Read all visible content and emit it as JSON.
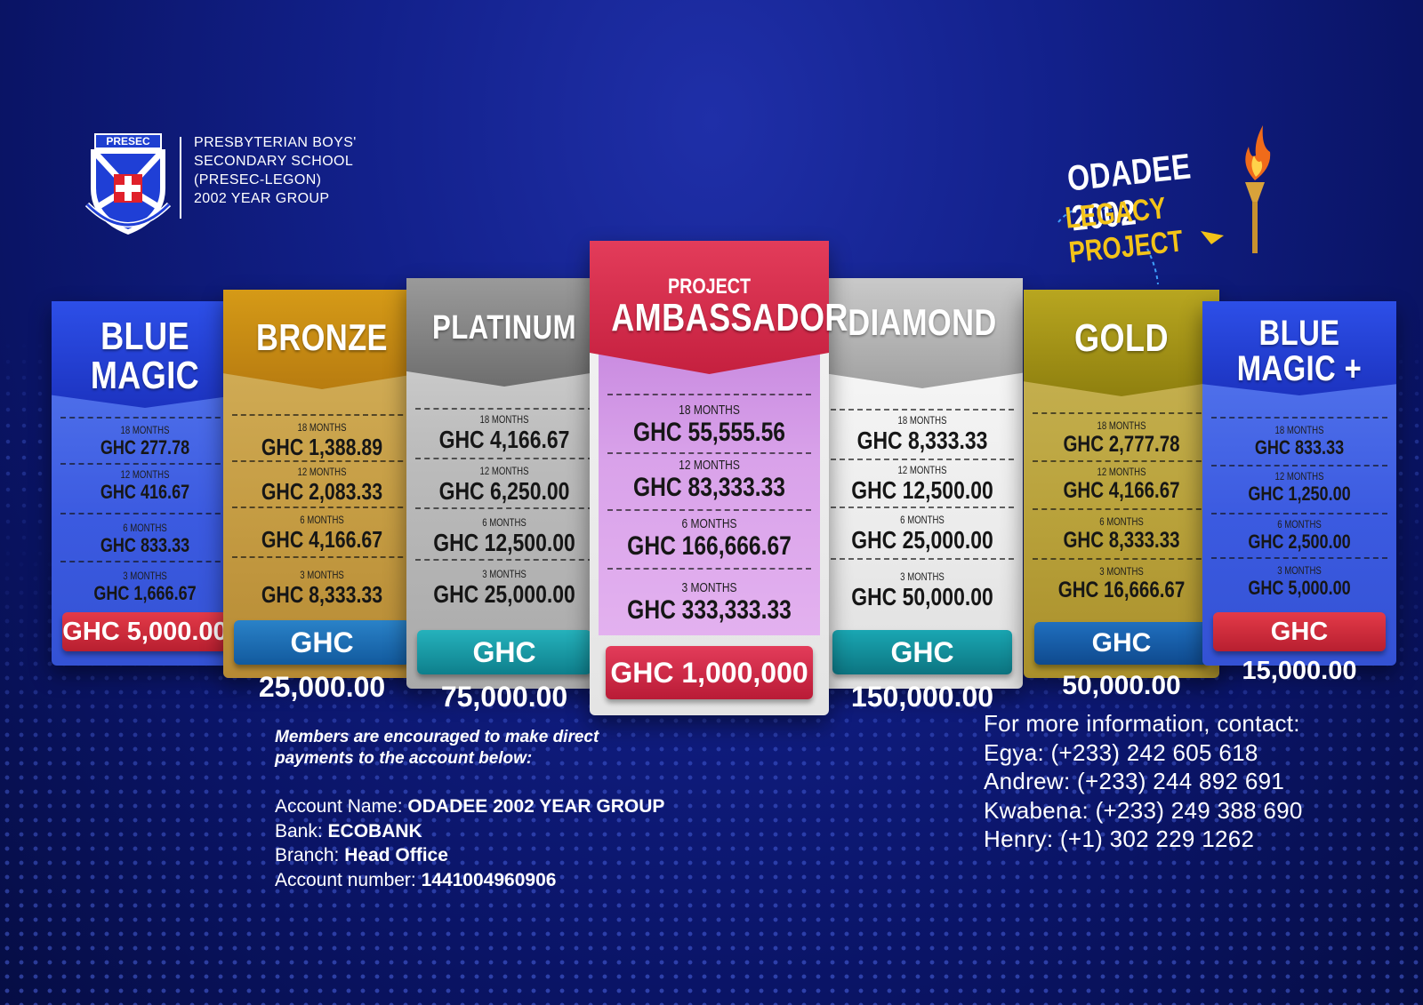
{
  "school": {
    "crest_tag": "PRESEC",
    "lines": [
      "PRESBYTERIAN BOYS'",
      "SECONDARY SCHOOL",
      "(PRESEC-LEGON)",
      "2002 YEAR GROUP"
    ]
  },
  "logo": {
    "line1": "ODADEE 2002",
    "line2": "LEGACY PROJECT"
  },
  "tiers": [
    {
      "title_lines": [
        "BLUE",
        "MAGIC"
      ],
      "subtitle": "",
      "rows": [
        {
          "period": "18 MONTHS",
          "price": "GHC 277.78"
        },
        {
          "period": "12 MONTHS",
          "price": "GHC 416.67"
        },
        {
          "period": "6 MONTHS",
          "price": "GHC 833.33"
        },
        {
          "period": "3 MONTHS",
          "price": "GHC 1,666.67"
        }
      ],
      "total": "GHC 5,000.00"
    },
    {
      "title_lines": [
        "BRONZE"
      ],
      "subtitle": "",
      "rows": [
        {
          "period": "18 MONTHS",
          "price": "GHC 1,388.89"
        },
        {
          "period": "12 MONTHS",
          "price": "GHC 2,083.33"
        },
        {
          "period": "6 MONTHS",
          "price": "GHC 4,166.67"
        },
        {
          "period": "3 MONTHS",
          "price": "GHC 8,333.33"
        }
      ],
      "total": "GHC 25,000.00"
    },
    {
      "title_lines": [
        "PLATINUM"
      ],
      "subtitle": "",
      "rows": [
        {
          "period": "18 MONTHS",
          "price": "GHC 4,166.67"
        },
        {
          "period": "12 MONTHS",
          "price": "GHC 6,250.00"
        },
        {
          "period": "6 MONTHS",
          "price": "GHC 12,500.00"
        },
        {
          "period": "3 MONTHS",
          "price": "GHC 25,000.00"
        }
      ],
      "total": "GHC 75,000.00"
    },
    {
      "title_lines": [
        "AMBASSADOR"
      ],
      "subtitle": "PROJECT",
      "rows": [
        {
          "period": "18 MONTHS",
          "price": "GHC 55,555.56"
        },
        {
          "period": "12 MONTHS",
          "price": "GHC 83,333.33"
        },
        {
          "period": "6 MONTHS",
          "price": "GHC 166,666.67"
        },
        {
          "period": "3 MONTHS",
          "price": "GHC 333,333.33"
        }
      ],
      "total": "GHC 1,000,000"
    },
    {
      "title_lines": [
        "DIAMOND"
      ],
      "subtitle": "",
      "rows": [
        {
          "period": "18 MONTHS",
          "price": "GHC 8,333.33"
        },
        {
          "period": "12 MONTHS",
          "price": "GHC 12,500.00"
        },
        {
          "period": "6 MONTHS",
          "price": "GHC 25,000.00"
        },
        {
          "period": "3 MONTHS",
          "price": "GHC 50,000.00"
        }
      ],
      "total": "GHC 150,000.00"
    },
    {
      "title_lines": [
        "GOLD"
      ],
      "subtitle": "",
      "rows": [
        {
          "period": "18 MONTHS",
          "price": "GHC 2,777.78"
        },
        {
          "period": "12 MONTHS",
          "price": "GHC 4,166.67"
        },
        {
          "period": "6 MONTHS",
          "price": "GHC 8,333.33"
        },
        {
          "period": "3 MONTHS",
          "price": "GHC 16,666.67"
        }
      ],
      "total": "GHC 50,000.00"
    },
    {
      "title_lines": [
        "BLUE",
        "MAGIC +"
      ],
      "subtitle": "",
      "rows": [
        {
          "period": "18 MONTHS",
          "price": "GHC 833.33"
        },
        {
          "period": "12 MONTHS",
          "price": "GHC 1,250.00"
        },
        {
          "period": "6 MONTHS",
          "price": "GHC 2,500.00"
        },
        {
          "period": "3 MONTHS",
          "price": "GHC 5,000.00"
        }
      ],
      "total": "GHC 15,000.00"
    }
  ],
  "payment": {
    "note_line1": "Members are encouraged to make direct",
    "note_line2": "payments to the account below:",
    "account_name_label": "Account Name: ",
    "account_name_value": "ODADEE 2002 YEAR GROUP",
    "bank_label": "Bank: ",
    "bank_value": "ECOBANK",
    "branch_label": "Branch: ",
    "branch_value": "Head Office",
    "account_number_label": "Account number: ",
    "account_number_value": "1441004960906"
  },
  "contact": {
    "heading": "For more information, contact:",
    "people": [
      "Egya: (+233) 242 605 618",
      "Andrew: (+233) 244 892 691",
      "Kwabena: (+233) 249 388 690",
      "Henry: (+1) 302 229 1262"
    ]
  }
}
